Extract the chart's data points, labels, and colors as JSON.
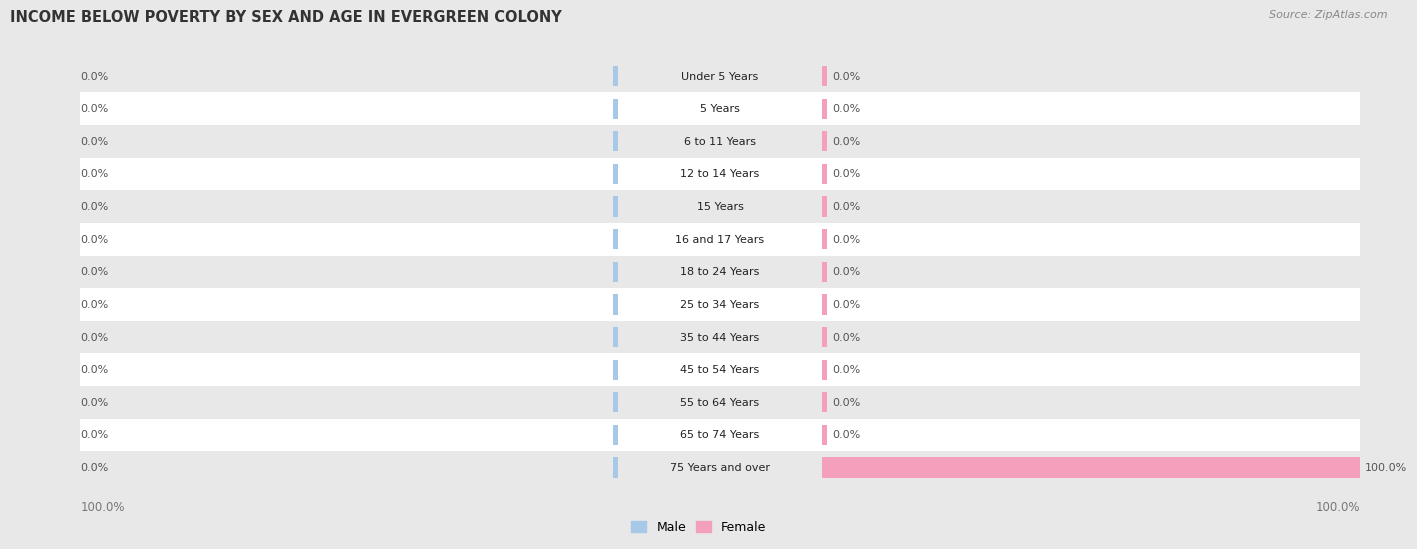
{
  "title": "INCOME BELOW POVERTY BY SEX AND AGE IN EVERGREEN COLONY",
  "source": "Source: ZipAtlas.com",
  "categories": [
    "Under 5 Years",
    "5 Years",
    "6 to 11 Years",
    "12 to 14 Years",
    "15 Years",
    "16 and 17 Years",
    "18 to 24 Years",
    "25 to 34 Years",
    "35 to 44 Years",
    "45 to 54 Years",
    "55 to 64 Years",
    "65 to 74 Years",
    "75 Years and over"
  ],
  "male_values": [
    0.0,
    0.0,
    0.0,
    0.0,
    0.0,
    0.0,
    0.0,
    0.0,
    0.0,
    0.0,
    0.0,
    0.0,
    0.0
  ],
  "female_values": [
    0.0,
    0.0,
    0.0,
    0.0,
    0.0,
    0.0,
    0.0,
    0.0,
    0.0,
    0.0,
    0.0,
    0.0,
    100.0
  ],
  "male_color": "#a8c8e8",
  "female_color": "#f4a0bc",
  "row_colors": [
    "#e8e8e8",
    "#ffffff"
  ],
  "label_color": "#555555",
  "title_color": "#333333",
  "source_color": "#888888",
  "axis_label_color": "#777777",
  "max_value": 100.0,
  "stub_value": 0.8,
  "bar_height": 0.62,
  "fig_width": 14.06,
  "fig_height": 5.58
}
